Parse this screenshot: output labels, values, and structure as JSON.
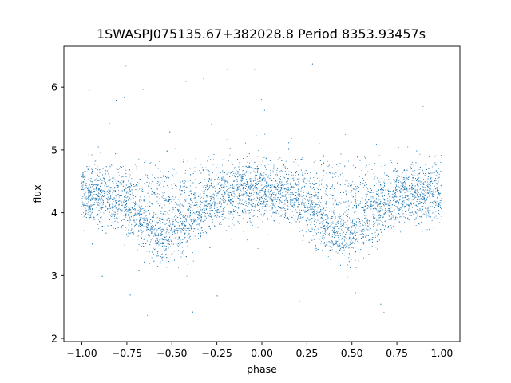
{
  "chart_data": {
    "type": "scatter",
    "title": "1SWASPJ075135.67+382028.8 Period 8353.93457s",
    "xlabel": "phase",
    "ylabel": "flux",
    "xlim": [
      -1.1,
      1.1
    ],
    "ylim": [
      1.95,
      6.65
    ],
    "xticks": [
      -1.0,
      -0.75,
      -0.5,
      -0.25,
      0.0,
      0.25,
      0.5,
      0.75,
      1.0
    ],
    "xtick_labels": [
      "−1.00",
      "−0.75",
      "−0.50",
      "−0.25",
      "0.00",
      "0.25",
      "0.50",
      "0.75",
      "1.00"
    ],
    "yticks": [
      2,
      3,
      4,
      5,
      6
    ],
    "ytick_labels": [
      "2",
      "3",
      "4",
      "5",
      "6"
    ],
    "grid": false,
    "legend": "none",
    "marker_color": "#1f77b4",
    "series": [
      {
        "description_of_shape": "dense folded light curve, flux ~4.35 at out-of-eclipse phases, V-shaped dips reaching ~3.6 near phases -0.55 and 0.45, scatter 3-5.2 with outliers 2.1-6.4",
        "x": [
          -1.0,
          -0.9,
          -0.8,
          -0.7,
          -0.6,
          -0.55,
          -0.5,
          -0.4,
          -0.3,
          -0.2,
          -0.1,
          0.0,
          0.1,
          0.2,
          0.3,
          0.4,
          0.45,
          0.5,
          0.6,
          0.7,
          0.8,
          0.9,
          1.0
        ],
        "y": [
          4.3,
          4.3,
          4.2,
          4.0,
          3.7,
          3.6,
          3.65,
          3.85,
          4.1,
          4.3,
          4.35,
          4.32,
          4.3,
          4.2,
          3.95,
          3.65,
          3.6,
          3.65,
          3.9,
          4.15,
          4.3,
          4.32,
          4.3
        ]
      }
    ]
  }
}
